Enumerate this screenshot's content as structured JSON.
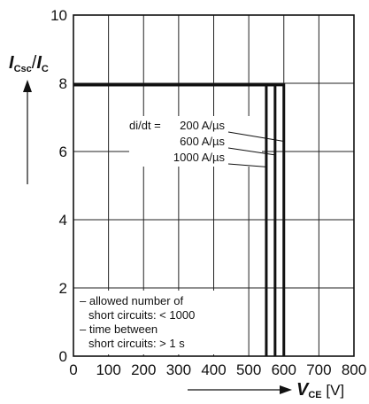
{
  "chart_data": {
    "type": "line",
    "x": [
      0,
      100,
      200,
      300,
      400,
      500,
      600,
      700,
      800
    ],
    "xlim": [
      0,
      800
    ],
    "ylim": [
      0,
      10
    ],
    "xticks": [
      "0",
      "100",
      "200",
      "300",
      "400",
      "500",
      "600",
      "700",
      "800"
    ],
    "yticks": [
      "0",
      "2",
      "4",
      "6",
      "8",
      "10"
    ],
    "grid": true,
    "xlabel": {
      "main": "V",
      "sub": "CE",
      "unit": " [V]"
    },
    "ylabel": {
      "num": "I",
      "num_sub": "Csc",
      "slash": "/",
      "den": "I",
      "den_sub": "C"
    },
    "annotation_prefix": "di/dt =",
    "series": [
      {
        "name": "200 A/µs",
        "points": [
          [
            0,
            7.95
          ],
          [
            600,
            7.95
          ],
          [
            600,
            0
          ]
        ]
      },
      {
        "name": "600 A/µs",
        "points": [
          [
            0,
            7.95
          ],
          [
            575,
            7.95
          ],
          [
            575,
            0
          ]
        ]
      },
      {
        "name": "1000 A/µs",
        "points": [
          [
            0,
            7.95
          ],
          [
            550,
            7.95
          ],
          [
            550,
            0
          ]
        ]
      }
    ],
    "notes": [
      "– allowed number of",
      "short circuits: < 1000",
      "– time between",
      "short circuits: > 1 s"
    ]
  }
}
